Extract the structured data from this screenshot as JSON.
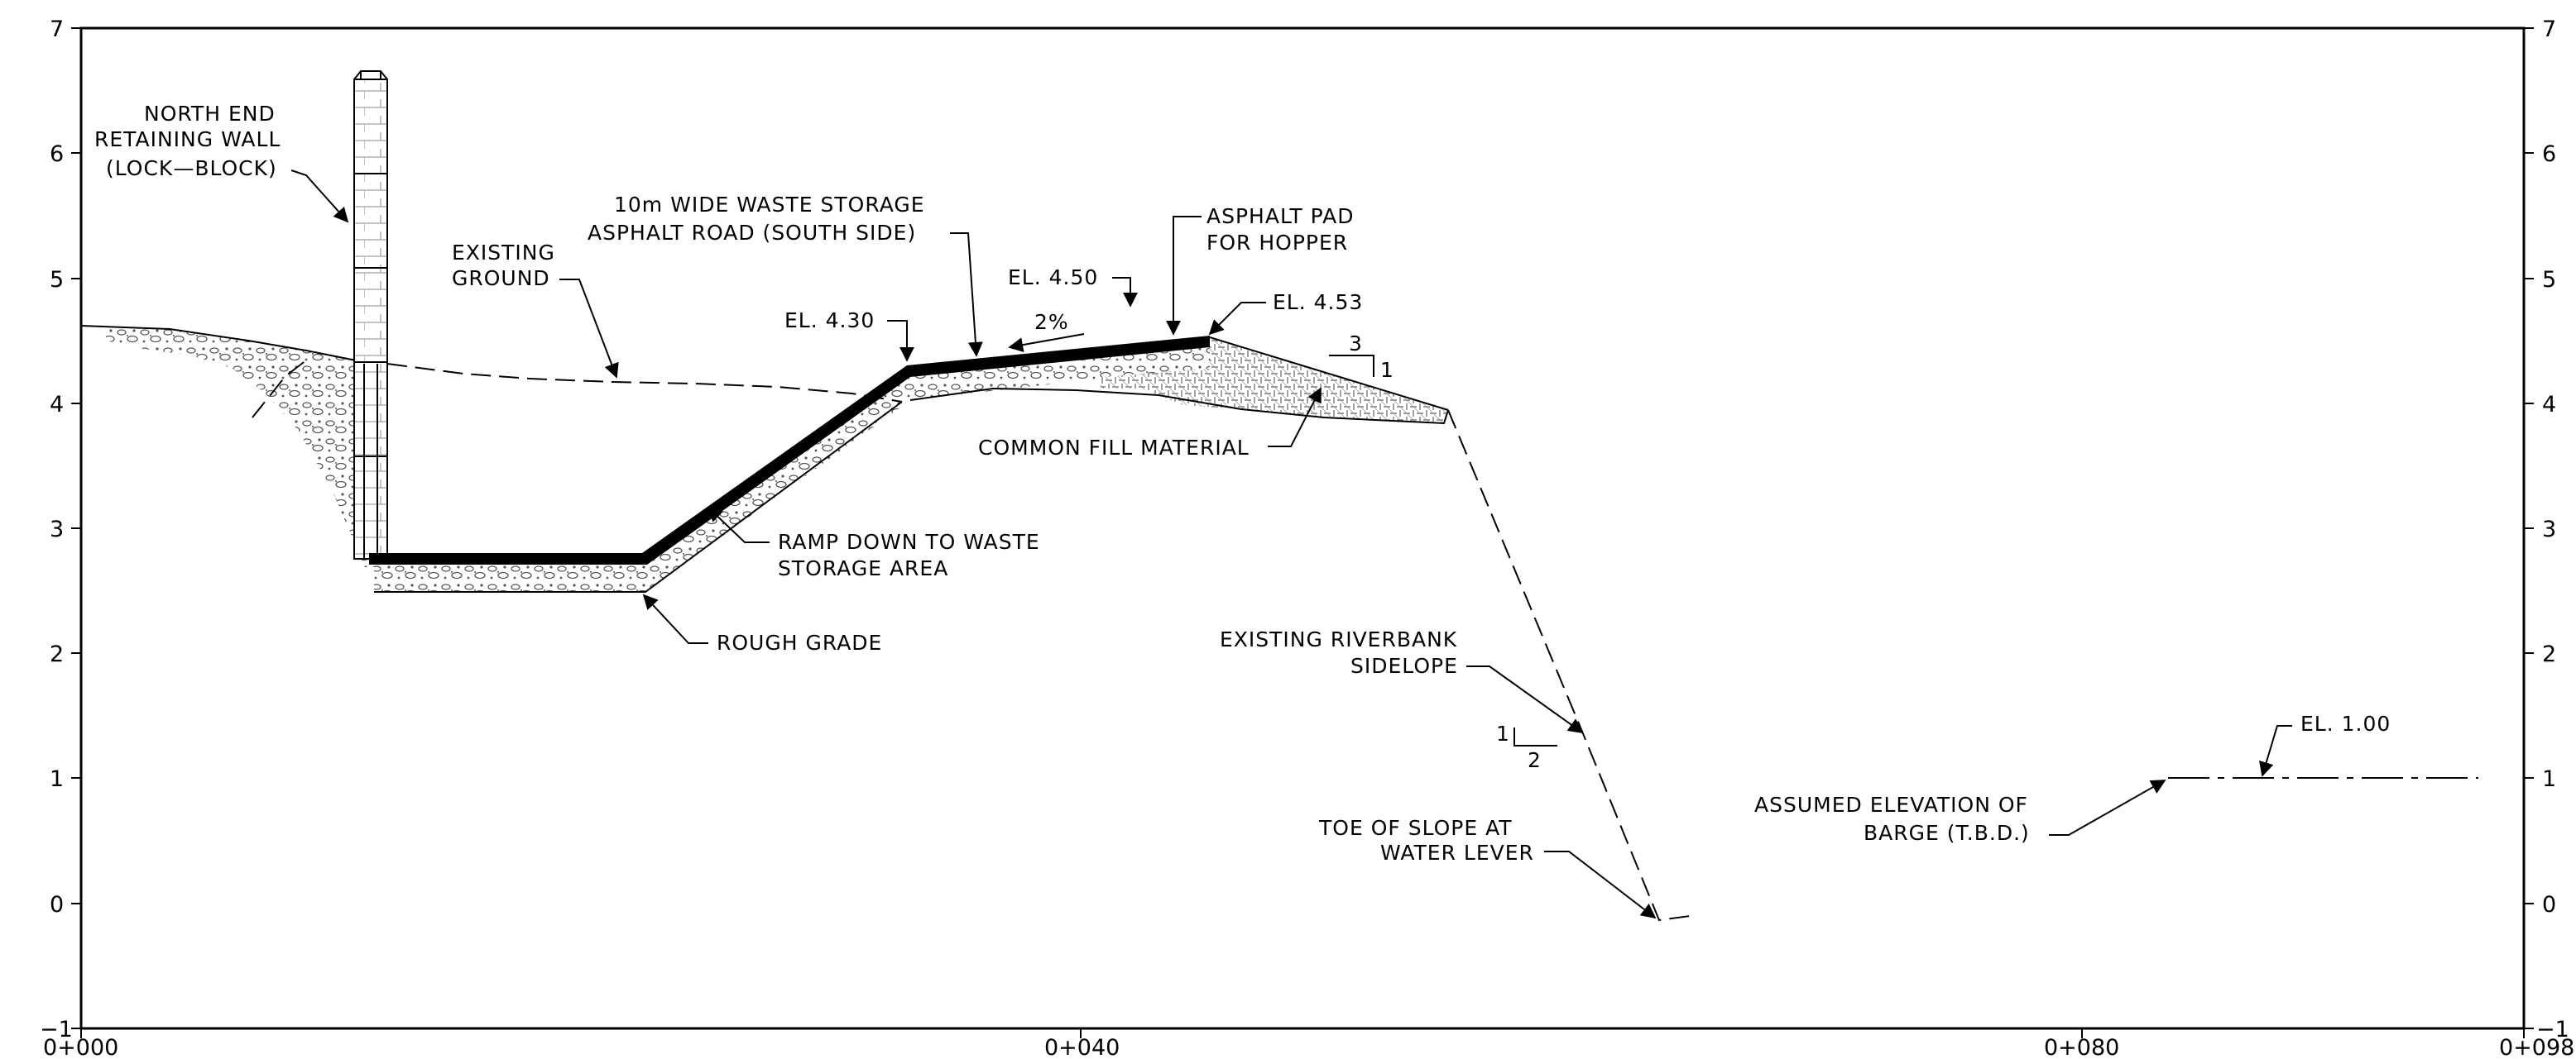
{
  "y_axis_ticks": [
    "7",
    "6",
    "5",
    "4",
    "3",
    "2",
    "1",
    "0",
    "−1"
  ],
  "x_axis_ticks": [
    "0+000",
    "0+040",
    "0+080",
    "0+098"
  ],
  "labels": {
    "north_end_wall": [
      "NORTH END",
      "RETAINING WALL",
      "(LOCK—BLOCK)"
    ],
    "existing_ground": [
      "EXISTING",
      "GROUND"
    ],
    "road": [
      "10m WIDE WASTE STORAGE",
      "ASPHALT ROAD (SOUTH SIDE)"
    ],
    "asphalt_pad": [
      "ASPHALT PAD",
      "FOR HOPPER"
    ],
    "el_430": "EL. 4.30",
    "el_450": "EL. 4.50",
    "el_453": "EL. 4.53",
    "grade": "2%",
    "slope_3_1": [
      "3",
      "1"
    ],
    "common_fill": "COMMON FILL MATERIAL",
    "ramp": [
      "RAMP DOWN TO WASTE",
      "STORAGE AREA"
    ],
    "rough_grade": "ROUGH GRADE",
    "riverbank": [
      "EXISTING RIVERBANK",
      "SIDELOPE"
    ],
    "slope_1_2": [
      "1",
      "2"
    ],
    "toe": [
      "TOE OF SLOPE AT",
      "WATER LEVER"
    ],
    "barge": [
      "ASSUMED ELEVATION OF",
      "BARGE (T.B.D.)"
    ],
    "el_100": "EL. 1.00"
  }
}
